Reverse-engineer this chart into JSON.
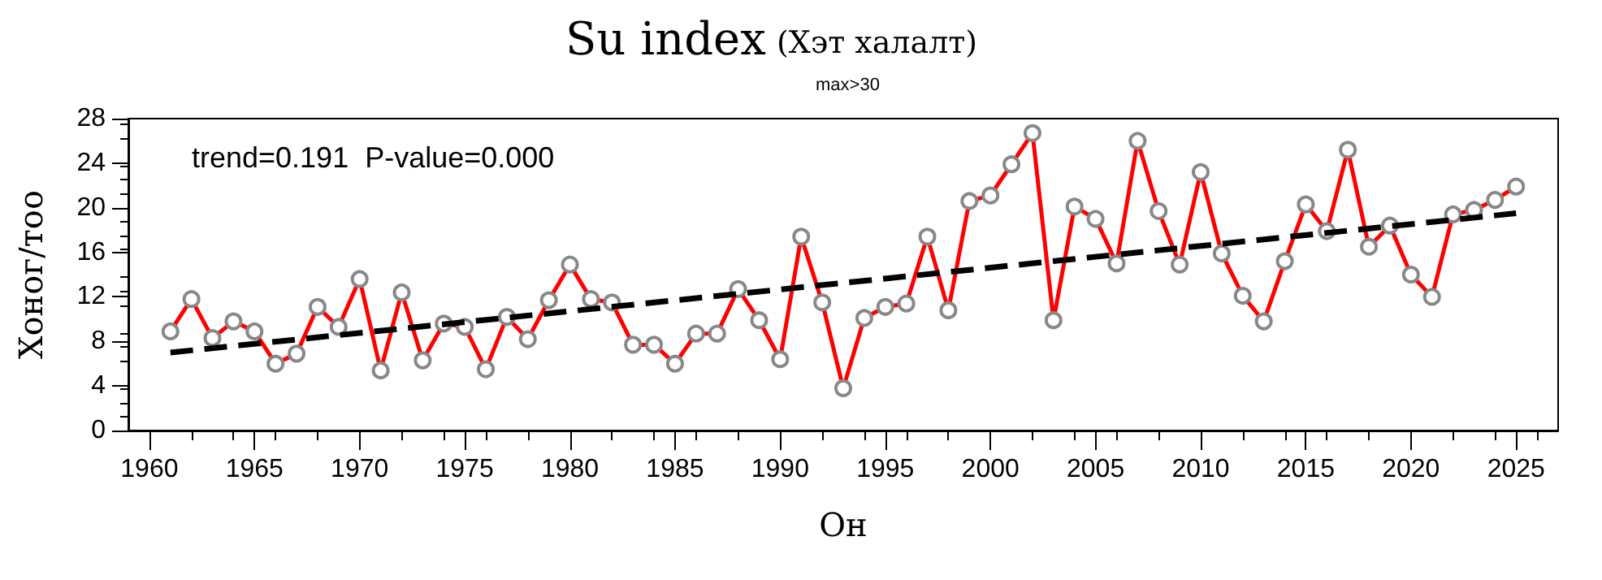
{
  "chart_data": {
    "type": "line",
    "title": "Su index",
    "subtitle": "(Хэт халалт)",
    "annotations": [
      "max>30",
      "trend=0.191  P-value=0.000"
    ],
    "xlabel": "Он",
    "ylabel": "Хоног/тоо",
    "x": [
      1961,
      1962,
      1963,
      1964,
      1965,
      1966,
      1967,
      1968,
      1969,
      1970,
      1971,
      1972,
      1973,
      1974,
      1975,
      1976,
      1977,
      1978,
      1979,
      1980,
      1981,
      1982,
      1983,
      1984,
      1985,
      1986,
      1987,
      1988,
      1989,
      1990,
      1991,
      1992,
      1993,
      1994,
      1995,
      1996,
      1997,
      1998,
      1999,
      2000,
      2001,
      2002,
      2003,
      2004,
      2005,
      2006,
      2007,
      2008,
      2009,
      2010,
      2011,
      2012,
      2013,
      2014,
      2015,
      2016,
      2017,
      2018,
      2019,
      2020,
      2021,
      2022,
      2023,
      2024,
      2025
    ],
    "series": [
      {
        "color": "#ff0000",
        "marker": "circle",
        "line_style": "solid",
        "values": [
          8.9,
          11.8,
          8.3,
          9.8,
          8.9,
          6.0,
          6.9,
          11.1,
          9.3,
          13.6,
          5.4,
          12.4,
          6.3,
          9.6,
          9.3,
          5.5,
          10.2,
          8.2,
          11.7,
          14.9,
          11.8,
          11.5,
          7.7,
          7.7,
          6.0,
          8.7,
          8.7,
          12.7,
          9.9,
          6.4,
          17.4,
          11.5,
          3.8,
          10.1,
          11.1,
          11.4,
          17.4,
          10.8,
          20.6,
          21.1,
          23.9,
          26.7,
          9.9,
          20.1,
          19.0,
          15.0,
          26.0,
          19.7,
          14.9,
          23.2,
          15.9,
          12.1,
          9.8,
          15.2,
          20.3,
          17.9,
          25.2,
          16.5,
          18.4,
          14.0,
          12.0,
          19.4,
          19.8,
          20.7,
          21.9
        ]
      },
      {
        "color": "#000000",
        "marker": "none",
        "line_style": "dashed",
        "x": [
          1961,
          2025
        ],
        "values": [
          7.0,
          19.5
        ]
      }
    ],
    "xlim": [
      1959,
      2027
    ],
    "xticks": [
      1960,
      1965,
      1970,
      1975,
      1980,
      1985,
      1990,
      1995,
      2000,
      2005,
      2010,
      2015,
      2020,
      2025
    ],
    "ylim": [
      0,
      28
    ],
    "yticks": [
      0,
      4,
      8,
      12,
      16,
      20,
      24,
      28
    ],
    "grid": false
  }
}
